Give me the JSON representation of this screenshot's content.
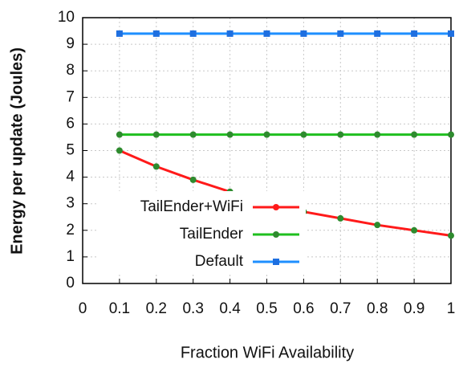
{
  "chart_data": {
    "type": "line",
    "x": [
      0.1,
      0.2,
      0.3,
      0.4,
      0.5,
      0.6,
      0.7,
      0.8,
      0.9,
      1
    ],
    "series": [
      {
        "name": "TailEnder+WiFi",
        "color": "#ff1a1a",
        "marker_color": "#2e8b2e",
        "values": [
          5.0,
          4.4,
          3.9,
          3.45,
          3.05,
          2.7,
          2.45,
          2.2,
          2.0,
          1.8
        ]
      },
      {
        "name": "TailEnder",
        "color": "#1fbf1f",
        "marker_color": "#2e8b2e",
        "values": [
          5.6,
          5.6,
          5.6,
          5.6,
          5.6,
          5.6,
          5.6,
          5.6,
          5.6,
          5.6
        ]
      },
      {
        "name": "Default",
        "color": "#1e8fff",
        "marker_color": "#1e6fe0",
        "values": [
          9.4,
          9.4,
          9.4,
          9.4,
          9.4,
          9.4,
          9.4,
          9.4,
          9.4,
          9.4
        ]
      }
    ],
    "xlabel": "Fraction WiFi Availability",
    "ylabel": "Energy per update (Joules)",
    "xlim": [
      0,
      1
    ],
    "xticks": [
      0,
      0.1,
      0.2,
      0.3,
      0.4,
      0.5,
      0.6,
      0.7,
      0.8,
      0.9,
      1
    ],
    "ylim": [
      0,
      10
    ],
    "yticks": [
      0,
      1,
      2,
      3,
      4,
      5,
      6,
      7,
      8,
      9,
      10
    ],
    "grid": true,
    "legend": "lower left"
  }
}
